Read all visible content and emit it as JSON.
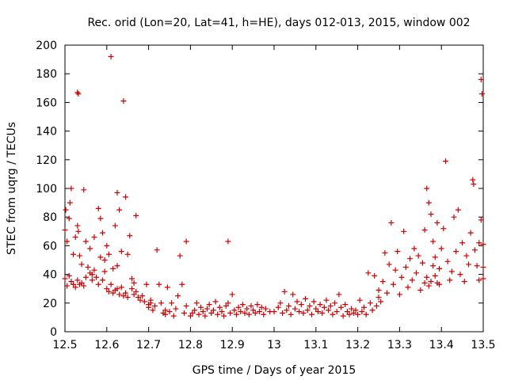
{
  "chart_data": {
    "type": "scatter",
    "title": "Rec. orid (Lon=20, Lat=41, h=HE), days 012-013, 2015, window 002",
    "xlabel": "GPS time / Days of year 2015",
    "ylabel": "STEC from uqrg / TECUs",
    "xlim": [
      12.5,
      13.5
    ],
    "ylim": [
      0,
      200
    ],
    "xticks": [
      "12.5",
      "12.6",
      "12.7",
      "12.8",
      "12.9",
      "13",
      "13.1",
      "13.2",
      "13.3",
      "13.4",
      "13.5"
    ],
    "yticks": [
      "0",
      "20",
      "40",
      "60",
      "80",
      "100",
      "120",
      "140",
      "160",
      "180",
      "200"
    ],
    "grid": false,
    "legend": "none",
    "marker": "plus",
    "series": [
      {
        "color": "#cc0000",
        "points": [
          [
            12.5,
            37
          ],
          [
            12.505,
            32
          ],
          [
            12.51,
            39
          ],
          [
            12.515,
            35
          ],
          [
            12.52,
            33
          ],
          [
            12.525,
            31
          ],
          [
            12.53,
            36
          ],
          [
            12.535,
            33
          ],
          [
            12.54,
            34
          ],
          [
            12.545,
            32
          ],
          [
            12.5,
            71
          ],
          [
            12.502,
            85
          ],
          [
            12.505,
            63
          ],
          [
            12.51,
            79
          ],
          [
            12.512,
            90
          ],
          [
            12.515,
            100
          ],
          [
            12.52,
            54
          ],
          [
            12.525,
            66
          ],
          [
            12.53,
            74
          ],
          [
            12.532,
            70
          ],
          [
            12.53,
            167
          ],
          [
            12.532,
            166
          ],
          [
            12.535,
            53
          ],
          [
            12.54,
            47
          ],
          [
            12.545,
            99
          ],
          [
            12.55,
            63
          ],
          [
            12.555,
            45
          ],
          [
            12.56,
            58
          ],
          [
            12.565,
            40
          ],
          [
            12.57,
            66
          ],
          [
            12.55,
            38
          ],
          [
            12.56,
            41
          ],
          [
            12.565,
            36
          ],
          [
            12.57,
            43
          ],
          [
            12.575,
            38
          ],
          [
            12.58,
            33
          ],
          [
            12.585,
            52
          ],
          [
            12.59,
            36
          ],
          [
            12.595,
            50
          ],
          [
            12.6,
            30
          ],
          [
            12.58,
            86
          ],
          [
            12.585,
            79
          ],
          [
            12.59,
            69
          ],
          [
            12.595,
            42
          ],
          [
            12.6,
            60
          ],
          [
            12.605,
            54
          ],
          [
            12.61,
            192
          ],
          [
            12.615,
            44
          ],
          [
            12.62,
            74
          ],
          [
            12.625,
            46
          ],
          [
            12.605,
            28
          ],
          [
            12.61,
            33
          ],
          [
            12.615,
            27
          ],
          [
            12.62,
            29
          ],
          [
            12.625,
            30
          ],
          [
            12.63,
            26
          ],
          [
            12.635,
            31
          ],
          [
            12.64,
            25
          ],
          [
            12.645,
            27
          ],
          [
            12.65,
            24
          ],
          [
            12.625,
            97
          ],
          [
            12.63,
            85
          ],
          [
            12.635,
            56
          ],
          [
            12.64,
            161
          ],
          [
            12.645,
            94
          ],
          [
            12.65,
            54
          ],
          [
            12.655,
            67
          ],
          [
            12.66,
            37
          ],
          [
            12.665,
            34
          ],
          [
            12.67,
            81
          ],
          [
            12.66,
            30
          ],
          [
            12.665,
            26
          ],
          [
            12.67,
            28
          ],
          [
            12.675,
            24
          ],
          [
            12.68,
            22
          ],
          [
            12.685,
            25
          ],
          [
            12.69,
            21
          ],
          [
            12.695,
            33
          ],
          [
            12.7,
            19
          ],
          [
            12.705,
            20
          ],
          [
            12.7,
            17
          ],
          [
            12.705,
            22
          ],
          [
            12.71,
            15
          ],
          [
            12.715,
            18
          ],
          [
            12.72,
            57
          ],
          [
            12.725,
            33
          ],
          [
            12.73,
            20
          ],
          [
            12.735,
            13
          ],
          [
            12.74,
            15
          ],
          [
            12.745,
            31
          ],
          [
            12.74,
            12
          ],
          [
            12.75,
            14
          ],
          [
            12.755,
            20
          ],
          [
            12.76,
            11
          ],
          [
            12.765,
            16
          ],
          [
            12.77,
            25
          ],
          [
            12.775,
            53
          ],
          [
            12.78,
            33
          ],
          [
            12.785,
            13
          ],
          [
            12.79,
            63
          ],
          [
            12.79,
            18
          ],
          [
            12.8,
            11
          ],
          [
            12.805,
            13
          ],
          [
            12.81,
            15
          ],
          [
            12.815,
            20
          ],
          [
            12.82,
            12
          ],
          [
            12.825,
            17
          ],
          [
            12.83,
            14
          ],
          [
            12.835,
            11
          ],
          [
            12.84,
            16
          ],
          [
            12.845,
            19
          ],
          [
            12.85,
            13
          ],
          [
            12.855,
            15
          ],
          [
            12.86,
            21
          ],
          [
            12.865,
            12
          ],
          [
            12.87,
            17
          ],
          [
            12.875,
            14
          ],
          [
            12.88,
            11
          ],
          [
            12.885,
            18
          ],
          [
            12.89,
            63
          ],
          [
            12.89,
            20
          ],
          [
            12.895,
            13
          ],
          [
            12.9,
            26
          ],
          [
            12.905,
            15
          ],
          [
            12.91,
            12
          ],
          [
            12.915,
            17
          ],
          [
            12.92,
            14
          ],
          [
            12.925,
            19
          ],
          [
            12.93,
            13
          ],
          [
            12.935,
            16
          ],
          [
            12.94,
            12
          ],
          [
            12.945,
            18
          ],
          [
            12.95,
            15
          ],
          [
            12.955,
            13
          ],
          [
            12.96,
            19
          ],
          [
            12.965,
            14
          ],
          [
            12.97,
            17
          ],
          [
            12.975,
            12
          ],
          [
            12.98,
            16
          ],
          [
            12.99,
            14
          ],
          [
            13.0,
            14
          ],
          [
            13.01,
            17
          ],
          [
            13.015,
            20
          ],
          [
            13.02,
            13
          ],
          [
            13.025,
            28
          ],
          [
            13.03,
            15
          ],
          [
            13.035,
            18
          ],
          [
            13.04,
            12
          ],
          [
            13.045,
            26
          ],
          [
            13.05,
            16
          ],
          [
            13.055,
            21
          ],
          [
            13.06,
            14
          ],
          [
            13.065,
            19
          ],
          [
            13.07,
            13
          ],
          [
            13.075,
            23
          ],
          [
            13.08,
            15
          ],
          [
            13.085,
            18
          ],
          [
            13.09,
            12
          ],
          [
            13.095,
            21
          ],
          [
            13.1,
            16
          ],
          [
            13.105,
            14
          ],
          [
            13.11,
            19
          ],
          [
            13.115,
            13
          ],
          [
            13.12,
            17
          ],
          [
            13.125,
            22
          ],
          [
            13.13,
            15
          ],
          [
            13.135,
            18
          ],
          [
            13.14,
            12
          ],
          [
            13.145,
            20
          ],
          [
            13.15,
            14
          ],
          [
            13.155,
            26
          ],
          [
            13.16,
            17
          ],
          [
            13.165,
            11
          ],
          [
            13.17,
            19
          ],
          [
            13.175,
            14
          ],
          [
            13.18,
            12
          ],
          [
            13.185,
            16
          ],
          [
            13.19,
            13
          ],
          [
            13.195,
            15
          ],
          [
            13.2,
            12
          ],
          [
            13.205,
            22
          ],
          [
            13.21,
            14
          ],
          [
            13.215,
            17
          ],
          [
            13.22,
            12
          ],
          [
            13.225,
            41
          ],
          [
            13.23,
            20
          ],
          [
            13.235,
            15
          ],
          [
            13.24,
            39
          ],
          [
            13.245,
            18
          ],
          [
            13.25,
            24
          ],
          [
            13.25,
            29
          ],
          [
            13.255,
            21
          ],
          [
            13.26,
            35
          ],
          [
            13.265,
            55
          ],
          [
            13.27,
            27
          ],
          [
            13.275,
            47
          ],
          [
            13.28,
            76
          ],
          [
            13.285,
            33
          ],
          [
            13.29,
            43
          ],
          [
            13.295,
            56
          ],
          [
            13.3,
            26
          ],
          [
            13.305,
            38
          ],
          [
            13.31,
            70
          ],
          [
            13.315,
            45
          ],
          [
            13.32,
            31
          ],
          [
            13.325,
            51
          ],
          [
            13.33,
            36
          ],
          [
            13.335,
            58
          ],
          [
            13.34,
            41
          ],
          [
            13.345,
            53
          ],
          [
            13.35,
            29
          ],
          [
            13.355,
            48
          ],
          [
            13.36,
            71
          ],
          [
            13.365,
            100
          ],
          [
            13.37,
            90
          ],
          [
            13.375,
            82
          ],
          [
            13.38,
            63
          ],
          [
            13.385,
            52
          ],
          [
            13.39,
            76
          ],
          [
            13.395,
            44
          ],
          [
            13.36,
            34
          ],
          [
            13.365,
            38
          ],
          [
            13.37,
            32
          ],
          [
            13.375,
            35
          ],
          [
            13.38,
            46
          ],
          [
            13.385,
            39
          ],
          [
            13.39,
            34
          ],
          [
            13.395,
            33
          ],
          [
            13.4,
            58
          ],
          [
            13.405,
            72
          ],
          [
            13.41,
            119
          ],
          [
            13.415,
            49
          ],
          [
            13.42,
            36
          ],
          [
            13.425,
            42
          ],
          [
            13.43,
            80
          ],
          [
            13.435,
            56
          ],
          [
            13.44,
            85
          ],
          [
            13.445,
            40
          ],
          [
            13.45,
            62
          ],
          [
            13.455,
            35
          ],
          [
            13.46,
            53
          ],
          [
            13.465,
            47
          ],
          [
            13.47,
            69
          ],
          [
            13.475,
            106
          ],
          [
            13.477,
            103
          ],
          [
            13.48,
            57
          ],
          [
            13.485,
            46
          ],
          [
            13.49,
            36
          ],
          [
            13.495,
            176
          ],
          [
            13.497,
            166
          ],
          [
            13.49,
            62
          ],
          [
            13.495,
            78
          ],
          [
            13.5,
            45
          ],
          [
            13.5,
            37
          ],
          [
            13.5,
            61
          ]
        ]
      }
    ]
  }
}
